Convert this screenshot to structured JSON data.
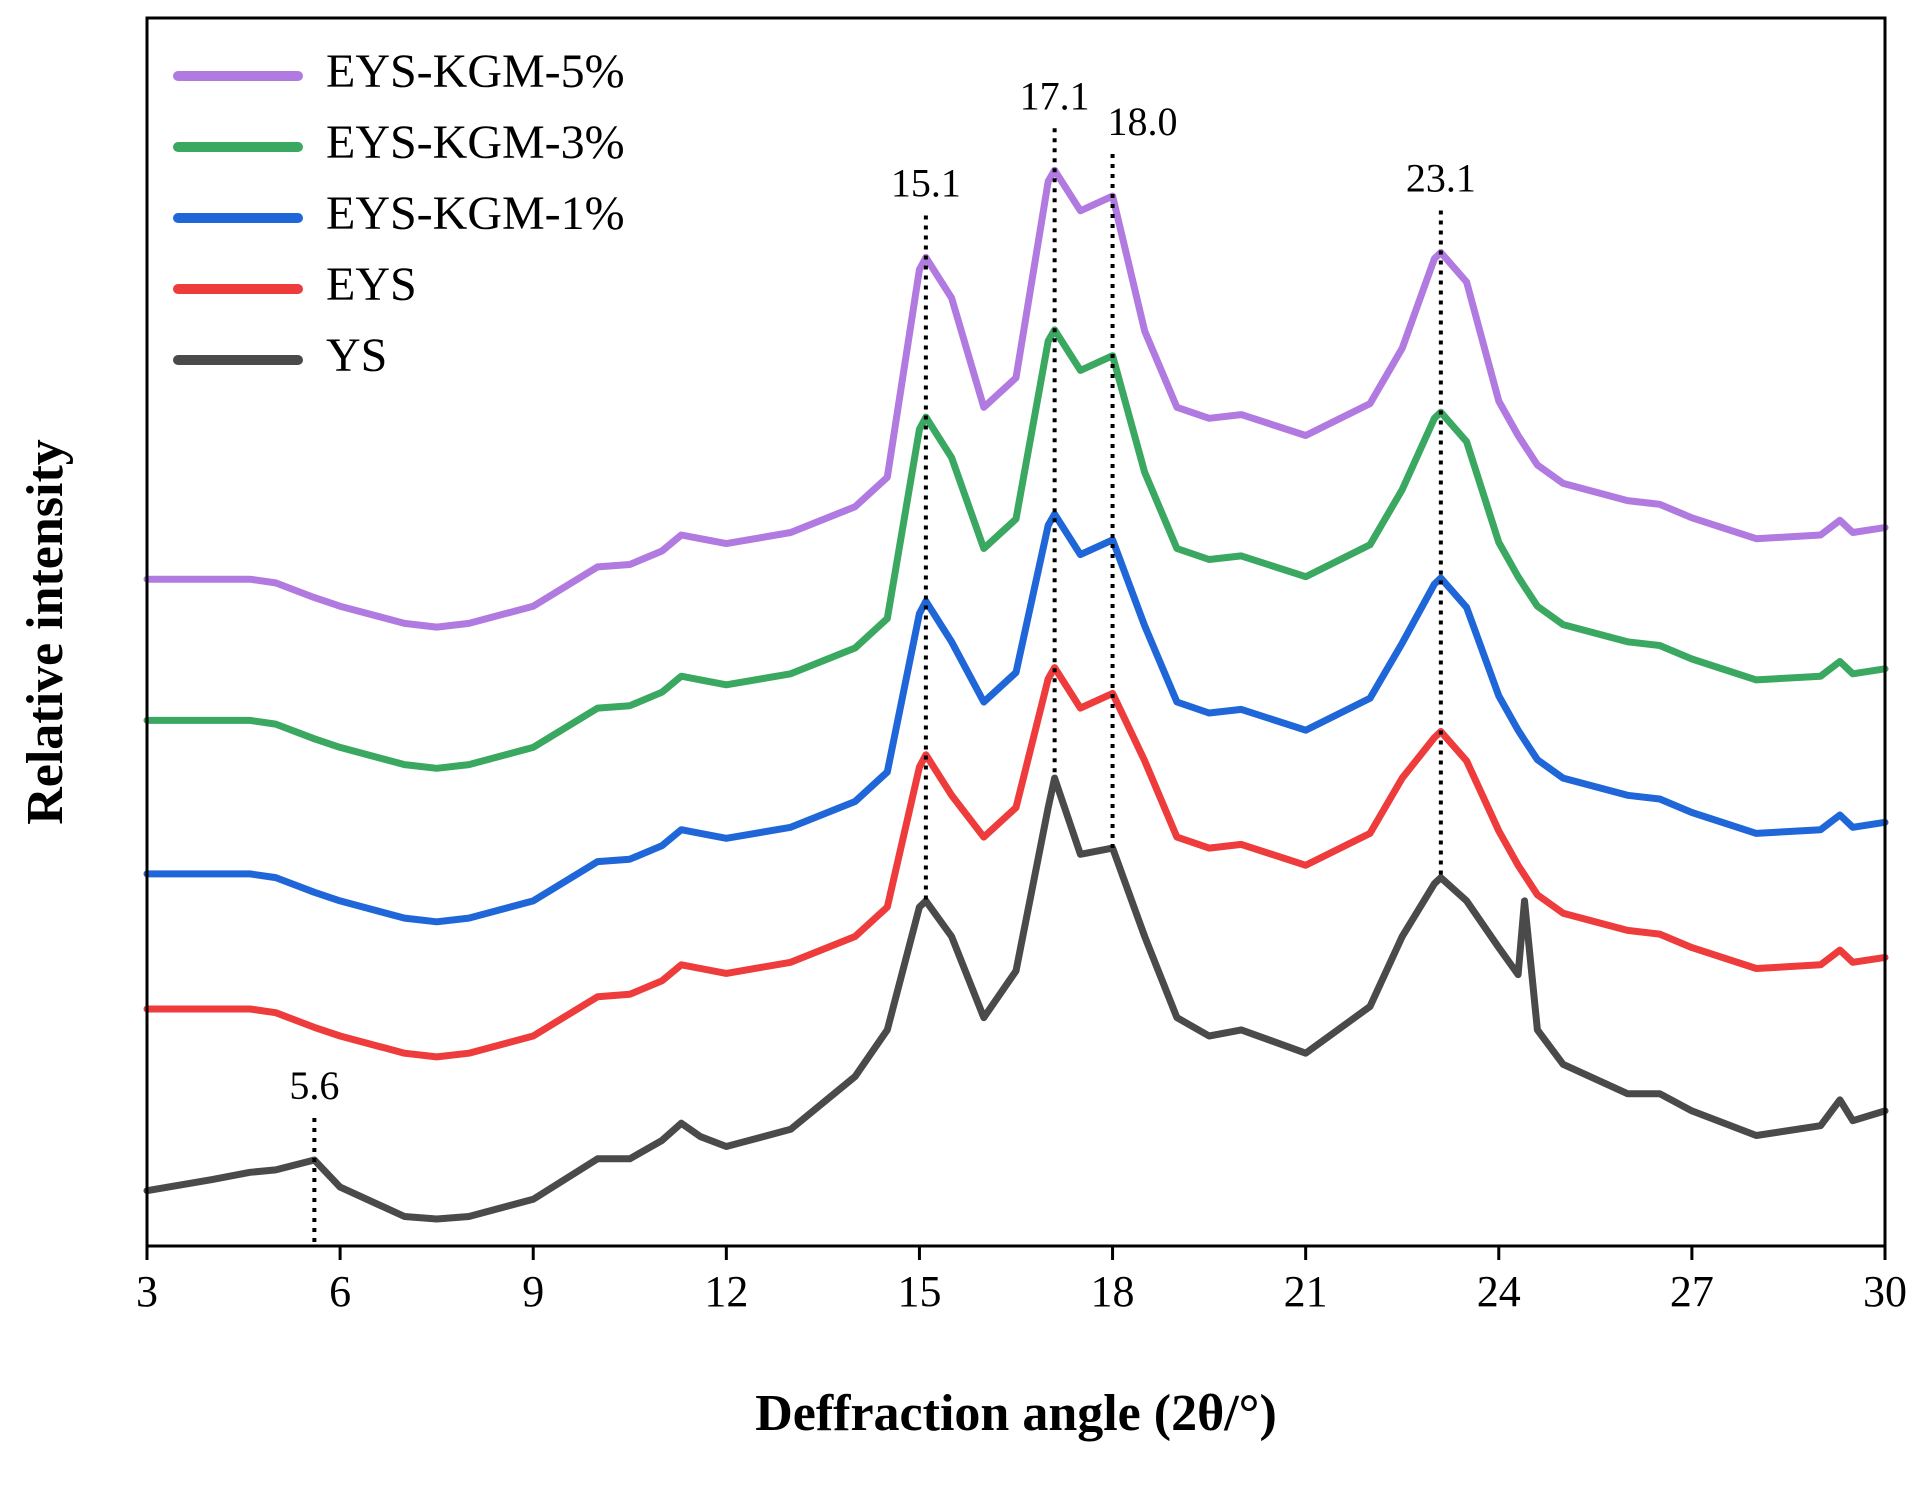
{
  "chart_data": {
    "type": "line",
    "x_label": "Deffraction angle (2θ/°)",
    "y_label": "Relative intensity",
    "x": [
      3,
      4,
      4.6,
      5,
      5.6,
      6,
      7,
      7.5,
      8,
      9,
      10,
      10.5,
      11,
      11.3,
      11.6,
      12,
      13,
      14,
      14.5,
      15,
      15.1,
      15.5,
      16,
      16.5,
      17,
      17.1,
      17.5,
      18,
      18.5,
      19,
      19.5,
      20,
      21,
      22,
      22.5,
      23,
      23.1,
      23.5,
      24,
      24.3,
      24.4,
      24.6,
      25,
      26,
      26.5,
      27,
      28,
      29,
      29.3,
      29.5,
      30
    ],
    "series": [
      {
        "name": "EYS-KGM-5%",
        "color": "#b07ae0",
        "values": [
          54.3,
          54.3,
          54.3,
          54.0,
          52.8,
          52.1,
          50.7,
          50.4,
          50.7,
          52.1,
          55.3,
          55.5,
          56.6,
          57.9,
          57.6,
          57.2,
          58.1,
          60.2,
          62.6,
          79.5,
          80.5,
          77.2,
          68.3,
          70.7,
          86.7,
          87.6,
          84.3,
          85.5,
          74.5,
          68.3,
          67.4,
          67.7,
          66.0,
          68.6,
          73.1,
          80.4,
          80.9,
          78.5,
          68.8,
          66.0,
          65.2,
          63.6,
          62.1,
          60.7,
          60.4,
          59.3,
          57.6,
          57.9,
          59.1,
          58.1,
          58.5
        ]
      },
      {
        "name": "EYS-KGM-3%",
        "color": "#3aa860",
        "values": [
          42.8,
          42.8,
          42.8,
          42.5,
          41.3,
          40.6,
          39.2,
          38.9,
          39.2,
          40.6,
          43.8,
          44.0,
          45.1,
          46.4,
          46.1,
          45.7,
          46.6,
          48.7,
          51.1,
          66.5,
          67.5,
          64.2,
          56.8,
          59.2,
          73.7,
          74.6,
          71.3,
          72.5,
          63.0,
          56.8,
          55.9,
          56.2,
          54.5,
          57.1,
          61.6,
          67.4,
          67.9,
          65.5,
          57.3,
          54.5,
          53.7,
          52.1,
          50.6,
          49.2,
          48.9,
          47.8,
          46.1,
          46.4,
          47.6,
          46.6,
          47.0
        ]
      },
      {
        "name": "EYS-KGM-1%",
        "color": "#1f66d8",
        "values": [
          30.3,
          30.3,
          30.3,
          30.0,
          28.8,
          28.1,
          26.7,
          26.4,
          26.7,
          28.1,
          31.3,
          31.5,
          32.6,
          33.9,
          33.6,
          33.2,
          34.1,
          36.2,
          38.6,
          51.5,
          52.5,
          49.2,
          44.3,
          46.7,
          58.7,
          59.6,
          56.3,
          57.5,
          50.5,
          44.3,
          43.4,
          43.7,
          42.0,
          44.6,
          49.1,
          53.9,
          54.4,
          52.0,
          44.8,
          42.0,
          41.2,
          39.6,
          38.1,
          36.7,
          36.4,
          35.3,
          33.6,
          33.9,
          35.1,
          34.1,
          34.5
        ]
      },
      {
        "name": "EYS",
        "color": "#ee3b3b",
        "values": [
          19.3,
          19.3,
          19.3,
          19.0,
          17.8,
          17.1,
          15.7,
          15.4,
          15.7,
          17.1,
          20.3,
          20.5,
          21.6,
          22.9,
          22.6,
          22.2,
          23.1,
          25.2,
          27.6,
          39.0,
          40.0,
          36.7,
          33.3,
          35.7,
          46.2,
          47.1,
          43.8,
          45.0,
          39.5,
          33.3,
          32.4,
          32.7,
          31.0,
          33.6,
          38.1,
          41.4,
          41.9,
          39.5,
          33.8,
          31.0,
          30.2,
          28.6,
          27.1,
          25.7,
          25.4,
          24.3,
          22.6,
          22.9,
          24.1,
          23.1,
          23.5
        ]
      },
      {
        "name": "YS",
        "color": "#4a4a4a",
        "values": [
          4.5,
          5.4,
          6.0,
          6.2,
          7.0,
          4.8,
          2.4,
          2.2,
          2.4,
          3.8,
          7.1,
          7.1,
          8.6,
          10.0,
          8.9,
          8.1,
          9.5,
          13.8,
          17.6,
          27.6,
          28.1,
          25.2,
          18.6,
          22.4,
          35.7,
          38.1,
          31.9,
          32.4,
          25.2,
          18.6,
          17.1,
          17.6,
          15.7,
          19.5,
          25.2,
          29.5,
          30.0,
          28.1,
          24.3,
          22.1,
          28.1,
          17.6,
          14.8,
          12.4,
          12.4,
          11.0,
          9.0,
          9.8,
          11.9,
          10.2,
          11.0
        ]
      }
    ],
    "annotations": [
      5.6,
      15.1,
      17.1,
      {
        "value": 18,
        "label": "18.0"
      },
      23.1
    ],
    "xlim": [
      3,
      30
    ],
    "xticks": [
      3,
      6,
      9,
      12,
      15,
      18,
      21,
      24,
      27,
      30
    ],
    "ylim": [
      0,
      100
    ],
    "legend": "upper left"
  }
}
